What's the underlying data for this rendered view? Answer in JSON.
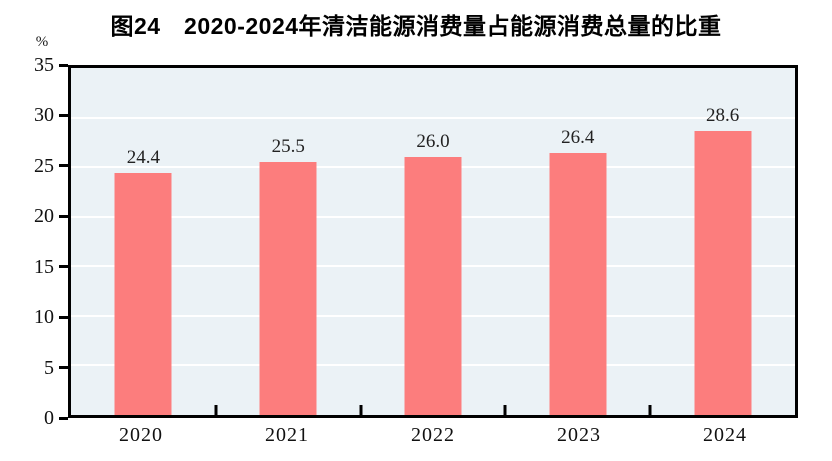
{
  "title": "图24　2020-2024年清洁能源消费量占能源消费总量的比重",
  "unit_label": "%",
  "colors": {
    "bar": "#FC7D7D",
    "plot_background": "#EBF2F6",
    "gridline": "#FFFFFF",
    "axis": "#000000",
    "text": "#111111"
  },
  "chart_data": {
    "type": "bar",
    "title": "图24　2020-2024年清洁能源消费量占能源消费总量的比重",
    "categories": [
      "2020",
      "2021",
      "2022",
      "2023",
      "2024"
    ],
    "values": [
      24.4,
      25.5,
      26.0,
      26.4,
      28.6
    ],
    "value_labels": [
      "24.4",
      "25.5",
      "26.0",
      "26.4",
      "28.6"
    ],
    "xlabel": "",
    "ylabel": "%",
    "ylim": [
      0,
      35
    ],
    "yticks": [
      0,
      5,
      10,
      15,
      20,
      25,
      30,
      35
    ],
    "grid": true,
    "gridline_color": "white",
    "legend_position": "none"
  }
}
